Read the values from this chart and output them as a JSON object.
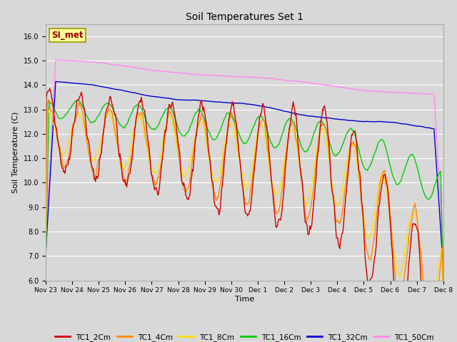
{
  "title": "Soil Temperatures Set 1",
  "xlabel": "Time",
  "ylabel": "Soil Temperature (C)",
  "ylim": [
    6.0,
    16.5
  ],
  "yticks": [
    6.0,
    7.0,
    8.0,
    9.0,
    10.0,
    11.0,
    12.0,
    13.0,
    14.0,
    15.0,
    16.0
  ],
  "ytick_labels": [
    "6.0",
    "7.0",
    "8.0",
    "9.0",
    "10.0",
    "11.0",
    "12.0",
    "13.0",
    "14.0",
    "15.0",
    "16.0"
  ],
  "background_color": "#d8d8d8",
  "plot_bg_color": "#d8d8d8",
  "label_box_text": "SI_met",
  "label_box_color": "#ffff99",
  "label_box_edge": "#999900",
  "label_box_text_color": "#990000",
  "series_colors": {
    "TC1_2Cm": "#cc0000",
    "TC1_4Cm": "#ff8800",
    "TC1_8Cm": "#ffdd00",
    "TC1_16Cm": "#00cc00",
    "TC1_32Cm": "#0000cc",
    "TC1_50Cm": "#ff88ee"
  },
  "tick_labels": [
    "Nov 23",
    "Nov 24",
    "Nov 25",
    "Nov 26",
    "Nov 27",
    "Nov 28",
    "Nov 29",
    "Nov 30",
    "Dec 1",
    "Dec 2",
    "Dec 3",
    "Dec 4",
    "Dec 5",
    "Dec 6",
    "Dec 7",
    "Dec 8"
  ]
}
